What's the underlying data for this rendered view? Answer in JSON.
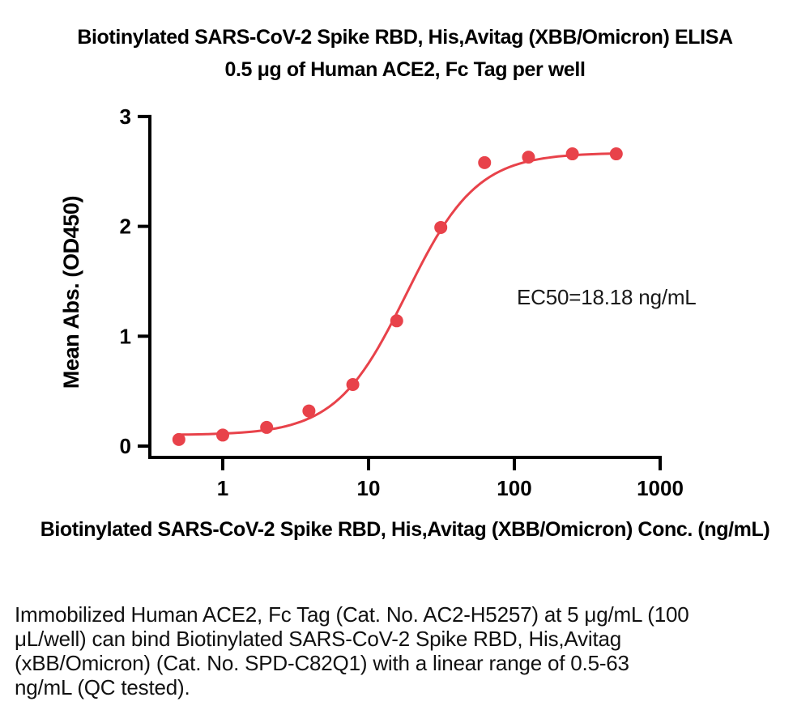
{
  "figure": {
    "title_line1": "Biotinylated SARS-CoV-2 Spike RBD, His,Avitag (XBB/Omicron) ELISA",
    "title_line2": "0.5 μg of Human ACE2, Fc Tag per well",
    "x_axis_caption": "Biotinylated SARS-CoV-2 Spike RBD, His,Avitag (XBB/Omicron) Conc. (ng/mL)",
    "footnote_lines": [
      "Immobilized Human ACE2, Fc Tag (Cat. No. AC2-H5257) at 5 μg/mL (100",
      "μL/well) can bind Biotinylated SARS-CoV-2 Spike RBD, His,Avitag",
      "(xBB/Omicron) (Cat. No. SPD-C82Q1) with a linear range of 0.5-63",
      "ng/mL (QC tested)."
    ]
  },
  "chart_data": {
    "type": "scatter",
    "title": "Biotinylated SARS-CoV-2 Spike RBD, His,Avitag (XBB/Omicron) ELISA — 0.5 μg of Human ACE2, Fc Tag per well",
    "xlabel": "Biotinylated SARS-CoV-2 Spike RBD, His,Avitag (XBB/Omicron) Conc. (ng/mL)",
    "ylabel": "Mean Abs. (OD450)",
    "xscale": "log",
    "yscale": "linear",
    "xticks": [
      1,
      10,
      100,
      1000
    ],
    "yticks": [
      0,
      1,
      2,
      3
    ],
    "xlim": [
      0.316,
      1000
    ],
    "ylim": [
      0,
      3
    ],
    "grid": false,
    "legend": "none",
    "annotation": "EC50=18.18 ng/mL",
    "ec50_ng_ml": 18.18,
    "x": [
      0.5,
      1,
      2,
      3.9,
      7.8,
      15.6,
      31.3,
      62.5,
      125,
      250,
      500
    ],
    "y": [
      0.06,
      0.1,
      0.17,
      0.32,
      0.56,
      1.14,
      1.99,
      2.58,
      2.63,
      2.66,
      2.66
    ],
    "curve_fit": {
      "model": "4PL",
      "bottom": 0.1,
      "top": 2.67,
      "ec50": 18.18,
      "hill": 1.8,
      "x_start": 0.5,
      "x_end": 500
    },
    "point_color": "#e8424a",
    "line_color": "#e8424a",
    "axis_color": "#000000"
  }
}
